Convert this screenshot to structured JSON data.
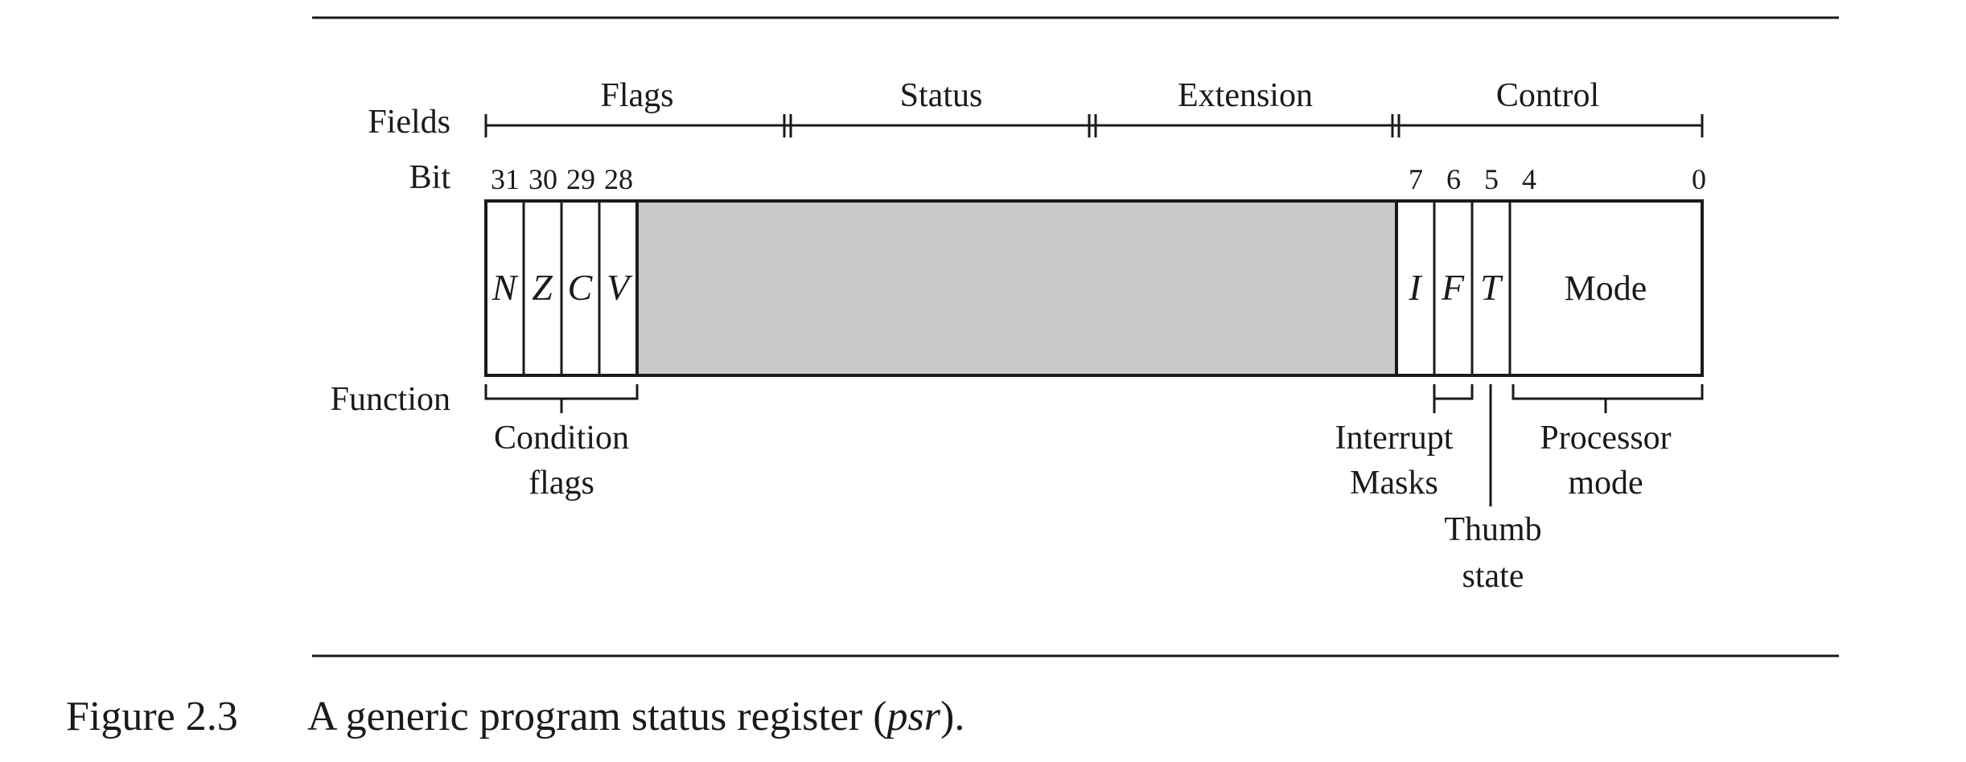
{
  "row_labels": {
    "fields": "Fields",
    "bit": "Bit",
    "function": "Function"
  },
  "fields": [
    "Flags",
    "Status",
    "Extension",
    "Control"
  ],
  "bit_numbers": [
    "31",
    "30",
    "29",
    "28",
    "7",
    "6",
    "5",
    "4",
    "0"
  ],
  "register_cells": [
    "N",
    "Z",
    "C",
    "V",
    "I",
    "F",
    "T",
    "Mode"
  ],
  "functions": {
    "condition_flags": [
      "Condition",
      "flags"
    ],
    "interrupt_masks": [
      "Interrupt",
      "Masks"
    ],
    "thumb_state": [
      "Thumb",
      "state"
    ],
    "processor_mode": [
      "Processor",
      "mode"
    ]
  },
  "caption": {
    "number": "Figure 2.3",
    "text_before": "A generic program status register (",
    "emphasis": "psr",
    "text_after": ")."
  },
  "colors": {
    "reserved_fill": "#c9c9c9",
    "line": "#1a1a1a"
  }
}
